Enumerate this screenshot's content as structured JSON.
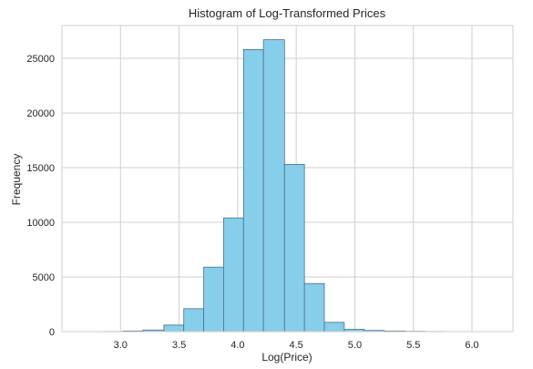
{
  "chart_data": {
    "type": "bar",
    "title": "Histogram of Log-Transformed Prices",
    "xlabel": "Log(Price)",
    "ylabel": "Frequency",
    "xlim": [
      2.5,
      6.35
    ],
    "ylim": [
      0,
      28000
    ],
    "xticks": [
      3.0,
      3.5,
      4.0,
      4.5,
      5.0,
      5.5,
      6.0
    ],
    "xtick_labels": [
      "3.0",
      "3.5",
      "4.0",
      "4.5",
      "5.0",
      "5.5",
      "6.0"
    ],
    "yticks": [
      0,
      5000,
      10000,
      15000,
      20000,
      25000
    ],
    "ytick_labels": [
      "0",
      "5000",
      "10000",
      "15000",
      "20000",
      "25000"
    ],
    "grid": true,
    "bar_color": "#87ceeb",
    "bar_edge_color": "#4a6f86",
    "bins": [
      {
        "x0": 2.68,
        "x1": 2.85,
        "count": 8
      },
      {
        "x0": 2.85,
        "x1": 3.02,
        "count": 15
      },
      {
        "x0": 3.02,
        "x1": 3.19,
        "count": 60
      },
      {
        "x0": 3.19,
        "x1": 3.37,
        "count": 150
      },
      {
        "x0": 3.37,
        "x1": 3.54,
        "count": 600
      },
      {
        "x0": 3.54,
        "x1": 3.71,
        "count": 2100
      },
      {
        "x0": 3.71,
        "x1": 3.88,
        "count": 5900
      },
      {
        "x0": 3.88,
        "x1": 4.05,
        "count": 10400
      },
      {
        "x0": 4.05,
        "x1": 4.22,
        "count": 25800
      },
      {
        "x0": 4.22,
        "x1": 4.4,
        "count": 26700
      },
      {
        "x0": 4.4,
        "x1": 4.57,
        "count": 15300
      },
      {
        "x0": 4.57,
        "x1": 4.74,
        "count": 4400
      },
      {
        "x0": 4.74,
        "x1": 4.91,
        "count": 850
      },
      {
        "x0": 4.91,
        "x1": 5.08,
        "count": 220
      },
      {
        "x0": 5.08,
        "x1": 5.25,
        "count": 110
      },
      {
        "x0": 5.25,
        "x1": 5.43,
        "count": 60
      },
      {
        "x0": 5.43,
        "x1": 5.6,
        "count": 30
      },
      {
        "x0": 5.6,
        "x1": 5.77,
        "count": 15
      },
      {
        "x0": 5.77,
        "x1": 5.94,
        "count": 8
      },
      {
        "x0": 5.94,
        "x1": 6.11,
        "count": 5
      }
    ]
  }
}
